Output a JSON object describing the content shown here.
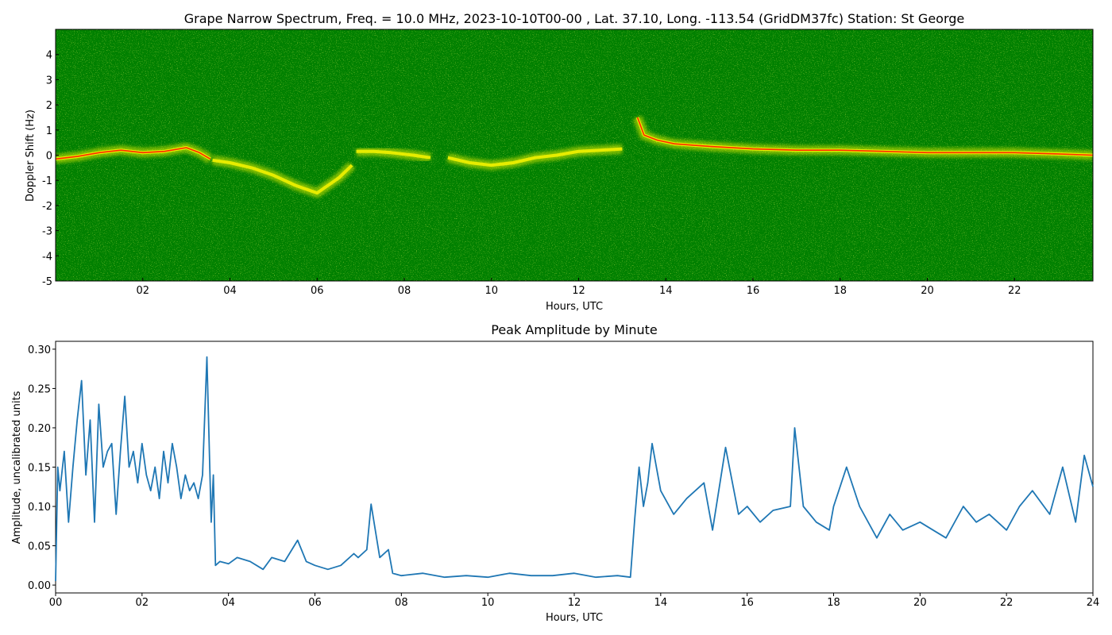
{
  "chart_data": [
    {
      "type": "heatmap",
      "title": "Grape Narrow Spectrum, Freq. = 10.0 MHz, 2023-10-10T00-00 , Lat.  37.10, Long. -113.54 (GridDM37fc) Station: St George",
      "xlabel": "Hours, UTC",
      "ylabel": "Doppler Shift (Hz)",
      "xlim": [
        0,
        23.8
      ],
      "ylim": [
        -5,
        5
      ],
      "xticks": [
        2,
        4,
        6,
        8,
        10,
        12,
        14,
        16,
        18,
        20,
        22
      ],
      "xtick_labels": [
        "02",
        "04",
        "06",
        "08",
        "10",
        "12",
        "14",
        "16",
        "18",
        "20",
        "22"
      ],
      "yticks": [
        -5,
        -4,
        -3,
        -2,
        -1,
        0,
        1,
        2,
        3,
        4
      ],
      "ytick_labels": [
        "-5",
        "-4",
        "-3",
        "-2",
        "-1",
        "0",
        "1",
        "2",
        "3",
        "4"
      ],
      "grid": false,
      "colors": {
        "background": "#008000",
        "weak": "#e6ec00",
        "strong": "#ff2a00"
      },
      "trace_segments": [
        {
          "hours": [
            0.0,
            0.5,
            1.0,
            1.5,
            2.0,
            2.5,
            3.0,
            3.3,
            3.55
          ],
          "hz": [
            -0.15,
            -0.05,
            0.1,
            0.2,
            0.1,
            0.15,
            0.3,
            0.1,
            -0.15
          ]
        },
        {
          "hours": [
            3.6,
            4.0,
            4.5,
            5.0,
            5.5,
            6.0,
            6.5,
            6.8
          ],
          "hz": [
            -0.2,
            -0.3,
            -0.5,
            -0.8,
            -1.2,
            -1.5,
            -0.9,
            -0.4
          ]
        },
        {
          "hours": [
            6.9,
            7.3,
            7.7,
            8.2,
            8.6
          ],
          "hz": [
            0.15,
            0.15,
            0.1,
            0.0,
            -0.1
          ]
        },
        {
          "hours": [
            9.0,
            9.5,
            10.0,
            10.5,
            11.0,
            11.5,
            12.0,
            12.5,
            13.0
          ],
          "hz": [
            -0.1,
            -0.3,
            -0.4,
            -0.3,
            -0.1,
            0.0,
            0.15,
            0.2,
            0.25
          ]
        },
        {
          "hours": [
            13.35,
            13.5,
            13.8,
            14.2,
            15.0,
            16.0,
            17.0,
            18.0,
            19.0,
            20.0,
            21.0,
            22.0,
            23.0,
            23.8
          ],
          "hz": [
            1.5,
            0.8,
            0.6,
            0.45,
            0.35,
            0.25,
            0.2,
            0.2,
            0.15,
            0.1,
            0.1,
            0.1,
            0.05,
            0.0
          ]
        }
      ]
    },
    {
      "type": "line",
      "title": "Peak Amplitude by Minute",
      "xlabel": "Hours, UTC",
      "ylabel": "Amplitude, uncalibrated units",
      "xlim": [
        0,
        24
      ],
      "ylim": [
        -0.01,
        0.31
      ],
      "xticks": [
        0,
        2,
        4,
        6,
        8,
        10,
        12,
        14,
        16,
        18,
        20,
        22,
        24
      ],
      "xtick_labels": [
        "00",
        "02",
        "04",
        "06",
        "08",
        "10",
        "12",
        "14",
        "16",
        "18",
        "20",
        "22",
        "24"
      ],
      "yticks": [
        0.0,
        0.05,
        0.1,
        0.15,
        0.2,
        0.25,
        0.3
      ],
      "ytick_labels": [
        "0.00",
        "0.05",
        "0.10",
        "0.15",
        "0.20",
        "0.25",
        "0.30"
      ],
      "grid": false,
      "line_color": "#1f77b4",
      "x": [
        0.0,
        0.05,
        0.1,
        0.2,
        0.3,
        0.4,
        0.5,
        0.6,
        0.7,
        0.8,
        0.9,
        1.0,
        1.1,
        1.2,
        1.3,
        1.4,
        1.5,
        1.6,
        1.7,
        1.8,
        1.9,
        2.0,
        2.1,
        2.2,
        2.3,
        2.4,
        2.5,
        2.6,
        2.7,
        2.8,
        2.9,
        3.0,
        3.1,
        3.2,
        3.3,
        3.4,
        3.5,
        3.6,
        3.65,
        3.7,
        3.8,
        4.0,
        4.2,
        4.5,
        4.8,
        5.0,
        5.3,
        5.6,
        5.8,
        6.0,
        6.3,
        6.6,
        6.9,
        7.0,
        7.2,
        7.3,
        7.5,
        7.7,
        7.8,
        8.0,
        8.5,
        9.0,
        9.5,
        10.0,
        10.5,
        11.0,
        11.5,
        12.0,
        12.5,
        13.0,
        13.3,
        13.4,
        13.5,
        13.6,
        13.7,
        13.8,
        14.0,
        14.3,
        14.6,
        15.0,
        15.2,
        15.5,
        15.8,
        16.0,
        16.3,
        16.6,
        17.0,
        17.1,
        17.3,
        17.6,
        17.9,
        18.0,
        18.3,
        18.6,
        19.0,
        19.3,
        19.6,
        20.0,
        20.3,
        20.6,
        21.0,
        21.3,
        21.6,
        22.0,
        22.3,
        22.6,
        23.0,
        23.3,
        23.6,
        23.8,
        24.0
      ],
      "values": [
        0.005,
        0.15,
        0.12,
        0.17,
        0.08,
        0.15,
        0.21,
        0.26,
        0.14,
        0.21,
        0.08,
        0.23,
        0.15,
        0.17,
        0.18,
        0.09,
        0.17,
        0.24,
        0.15,
        0.17,
        0.13,
        0.18,
        0.14,
        0.12,
        0.15,
        0.11,
        0.17,
        0.13,
        0.18,
        0.15,
        0.11,
        0.14,
        0.12,
        0.13,
        0.11,
        0.14,
        0.29,
        0.08,
        0.14,
        0.025,
        0.03,
        0.027,
        0.035,
        0.03,
        0.02,
        0.035,
        0.03,
        0.057,
        0.03,
        0.025,
        0.02,
        0.025,
        0.04,
        0.035,
        0.045,
        0.103,
        0.035,
        0.045,
        0.015,
        0.012,
        0.015,
        0.01,
        0.012,
        0.01,
        0.015,
        0.012,
        0.012,
        0.015,
        0.01,
        0.012,
        0.01,
        0.085,
        0.15,
        0.1,
        0.13,
        0.18,
        0.12,
        0.09,
        0.11,
        0.13,
        0.07,
        0.175,
        0.09,
        0.1,
        0.08,
        0.095,
        0.1,
        0.2,
        0.1,
        0.08,
        0.07,
        0.1,
        0.15,
        0.1,
        0.06,
        0.09,
        0.07,
        0.08,
        0.07,
        0.06,
        0.1,
        0.08,
        0.09,
        0.07,
        0.1,
        0.12,
        0.09,
        0.15,
        0.08,
        0.165,
        0.125
      ]
    }
  ]
}
